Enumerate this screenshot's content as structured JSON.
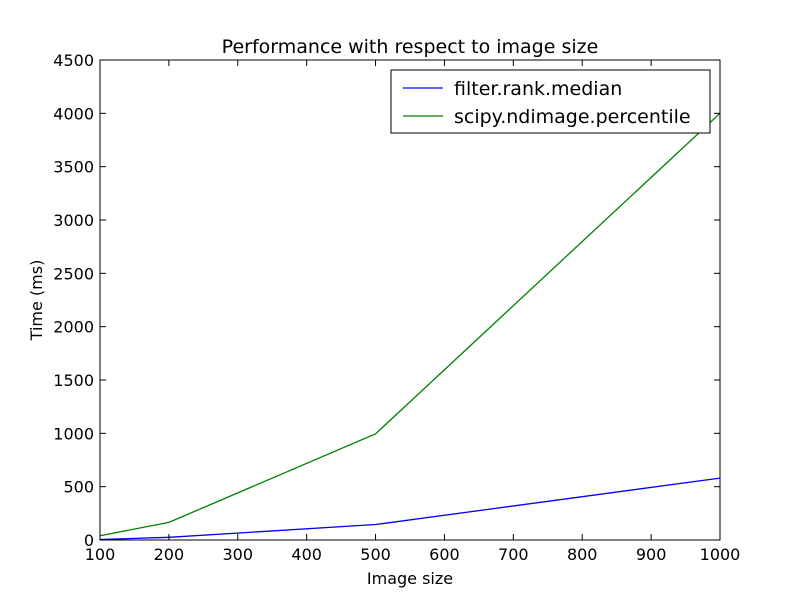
{
  "chart_data": {
    "type": "line",
    "title": "Performance with respect to image size",
    "xlabel": "Image size",
    "ylabel": "Time (ms)",
    "xlim": [
      100,
      1000
    ],
    "ylim": [
      0,
      4500
    ],
    "xticks": [
      100,
      200,
      300,
      400,
      500,
      600,
      700,
      800,
      900,
      1000
    ],
    "yticks": [
      0,
      500,
      1000,
      1500,
      2000,
      2500,
      3000,
      3500,
      4000,
      4500
    ],
    "grid": false,
    "legend_position": "top-right",
    "series": [
      {
        "name": "filter.rank.median",
        "color": "#0000ff",
        "x": [
          100,
          200,
          500,
          1000
        ],
        "y": [
          5,
          25,
          145,
          580
        ]
      },
      {
        "name": "scipy.ndimage.percentile",
        "color": "#008000",
        "x": [
          100,
          200,
          500,
          1000
        ],
        "y": [
          40,
          165,
          995,
          4000
        ]
      }
    ]
  }
}
